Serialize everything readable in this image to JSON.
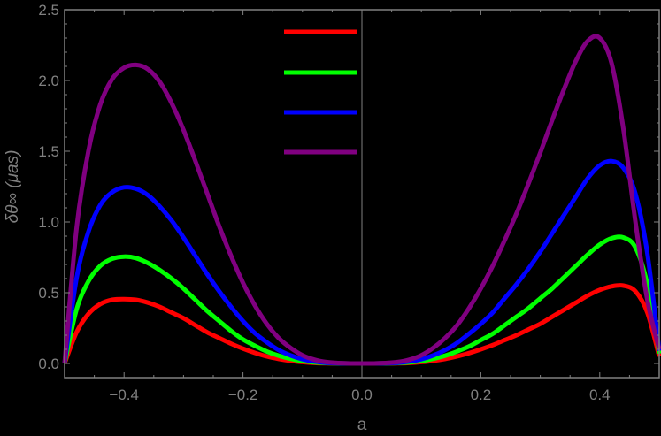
{
  "chart_data": {
    "type": "line",
    "title": "",
    "xlabel": "a",
    "ylabel": "δθ∞ (μas)",
    "xlim": [
      -0.5,
      0.5
    ],
    "ylim": [
      -0.1,
      2.5
    ],
    "xticks": [
      -0.4,
      -0.2,
      0.0,
      0.2,
      0.4
    ],
    "xtick_labels": [
      "−0.4",
      "−0.2",
      "0.0",
      "0.2",
      "0.4"
    ],
    "yticks": [
      0.0,
      0.5,
      1.0,
      1.5,
      2.0,
      2.5
    ],
    "ytick_labels": [
      "0.0",
      "0.5",
      "1.0",
      "1.5",
      "2.0",
      "2.5"
    ],
    "grid": false,
    "background": "#000000",
    "axis_color": "#808080",
    "legend": {
      "position": "top-center",
      "entries": [
        {
          "color": "#ff0000",
          "label": ""
        },
        {
          "color": "#00ff00",
          "label": ""
        },
        {
          "color": "#0000ff",
          "label": ""
        },
        {
          "color": "#800080",
          "label": ""
        }
      ]
    },
    "x": [
      -0.5,
      -0.48,
      -0.46,
      -0.44,
      -0.42,
      -0.4,
      -0.38,
      -0.36,
      -0.34,
      -0.32,
      -0.3,
      -0.28,
      -0.26,
      -0.24,
      -0.22,
      -0.2,
      -0.18,
      -0.16,
      -0.14,
      -0.12,
      -0.1,
      -0.08,
      -0.06,
      -0.04,
      -0.02,
      0.0,
      0.02,
      0.04,
      0.06,
      0.08,
      0.1,
      0.12,
      0.14,
      0.16,
      0.18,
      0.2,
      0.22,
      0.24,
      0.26,
      0.28,
      0.3,
      0.32,
      0.34,
      0.36,
      0.38,
      0.4,
      0.42,
      0.44,
      0.46,
      0.48,
      0.5
    ],
    "series": [
      {
        "name": "red",
        "color": "#ff0000",
        "values": [
          0.0,
          0.22,
          0.35,
          0.42,
          0.45,
          0.455,
          0.45,
          0.43,
          0.4,
          0.36,
          0.32,
          0.27,
          0.22,
          0.18,
          0.14,
          0.105,
          0.075,
          0.05,
          0.032,
          0.019,
          0.01,
          0.004,
          0.0015,
          0.0004,
          0.0,
          0.0,
          0.0,
          0.0004,
          0.0015,
          0.004,
          0.01,
          0.019,
          0.032,
          0.05,
          0.073,
          0.1,
          0.13,
          0.165,
          0.2,
          0.24,
          0.28,
          0.33,
          0.38,
          0.43,
          0.48,
          0.52,
          0.545,
          0.55,
          0.51,
          0.36,
          0.05
        ]
      },
      {
        "name": "green",
        "color": "#00ff00",
        "values": [
          0.0,
          0.38,
          0.58,
          0.69,
          0.74,
          0.755,
          0.745,
          0.71,
          0.66,
          0.6,
          0.53,
          0.45,
          0.37,
          0.3,
          0.23,
          0.17,
          0.125,
          0.085,
          0.055,
          0.033,
          0.017,
          0.008,
          0.003,
          0.0008,
          0.0,
          0.0,
          0.0,
          0.0008,
          0.003,
          0.008,
          0.017,
          0.033,
          0.055,
          0.085,
          0.12,
          0.165,
          0.21,
          0.27,
          0.33,
          0.39,
          0.46,
          0.53,
          0.61,
          0.69,
          0.77,
          0.84,
          0.885,
          0.89,
          0.82,
          0.56,
          0.07
        ]
      },
      {
        "name": "blue",
        "color": "#0000ff",
        "values": [
          0.0,
          0.6,
          0.93,
          1.12,
          1.21,
          1.245,
          1.235,
          1.19,
          1.11,
          1.01,
          0.89,
          0.76,
          0.63,
          0.51,
          0.4,
          0.3,
          0.215,
          0.15,
          0.095,
          0.057,
          0.03,
          0.014,
          0.005,
          0.0014,
          0.0,
          0.0,
          0.0,
          0.0014,
          0.005,
          0.014,
          0.03,
          0.057,
          0.095,
          0.145,
          0.21,
          0.28,
          0.36,
          0.46,
          0.56,
          0.67,
          0.79,
          0.92,
          1.05,
          1.18,
          1.31,
          1.4,
          1.43,
          1.38,
          1.2,
          0.78,
          0.09
        ]
      },
      {
        "name": "purple",
        "color": "#800080",
        "values": [
          0.0,
          0.95,
          1.5,
          1.83,
          2.01,
          2.09,
          2.11,
          2.08,
          1.99,
          1.84,
          1.65,
          1.43,
          1.2,
          0.97,
          0.76,
          0.57,
          0.41,
          0.28,
          0.18,
          0.11,
          0.058,
          0.027,
          0.01,
          0.003,
          0.0,
          0.0,
          0.0,
          0.003,
          0.01,
          0.027,
          0.058,
          0.11,
          0.18,
          0.27,
          0.39,
          0.53,
          0.69,
          0.87,
          1.06,
          1.27,
          1.49,
          1.72,
          1.94,
          2.14,
          2.28,
          2.3,
          2.12,
          1.65,
          1.0,
          0.45,
          0.1
        ]
      }
    ]
  }
}
